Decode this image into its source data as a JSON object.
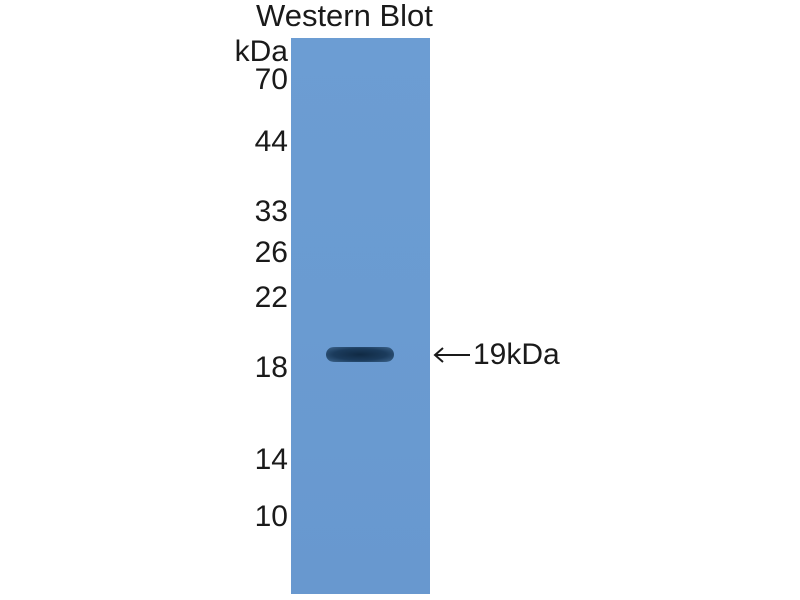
{
  "title": "Western Blot",
  "unit_label": "kDa",
  "markers": [
    "70",
    "44",
    "33",
    "26",
    "22",
    "18",
    "14",
    "10"
  ],
  "band_annotation": "19kDa",
  "colors": {
    "membrane": "#6a9bd1",
    "band": "#1b3b5c"
  }
}
